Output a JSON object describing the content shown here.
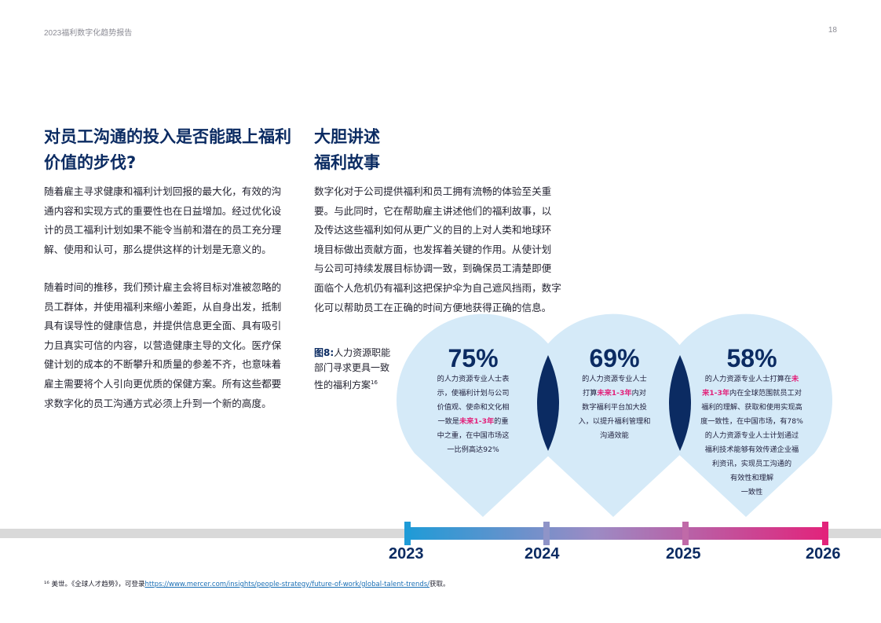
{
  "header": {
    "report_title": "2023福利数字化趋势报告",
    "page_number": "18"
  },
  "left_column": {
    "title_lines": [
      "对员工沟通的投入是否能跟上福利",
      "价值的步伐?"
    ],
    "paragraph1_lines": [
      "随着雇主寻求健康和福利计划回报的最大化，有效的沟",
      "通内容和实现方式的重要性也在日益增加。经过优化设",
      "计的员工福利计划如果不能令当前和潜在的员工充分理",
      "解、使用和认可，那么提供这样的计划是无意义的。"
    ],
    "paragraph2_lines": [
      "随着时间的推移，我们预计雇主会将目标对准被忽略的",
      "员工群体，并使用福利来缩小差距，从自身出发，抵制",
      "具有误导性的健康信息，并提供信息更全面、具有吸引",
      "力且真实可信的内容，以营造健康主导的文化。医疗保",
      "健计划的成本的不断攀升和质量的参差不齐，也意味着",
      "雇主需要将个人引向更优质的保健方案。所有这些都要",
      "求数字化的员工沟通方式必须上升到一个新的高度。"
    ]
  },
  "right_column": {
    "title_lines": [
      "大胆讲述",
      "福利故事"
    ],
    "paragraph_lines": [
      "数字化对于公司提供福利和员工拥有流畅的体验至关重",
      "要。与此同时，它在帮助雇主讲述他们的福利故事，以",
      "及传达这些福利如何从更广义的目的上对人类和地球环",
      "境目标做出贡献方面，也发挥着关键的作用。从使计划",
      "与公司可持续发展目标协调一致，到确保员工清楚即便",
      "面临个人危机仍有福利这把保护伞为自己遮风挡雨，数字",
      "化可以帮助员工在正确的时间方便地获得正确的信息。"
    ]
  },
  "figure": {
    "label": "图8:",
    "caption_lines": [
      "人力资源职能",
      "部门寻求更具一致",
      "性的福利方案"
    ],
    "caption_sup": "16",
    "stats": [
      {
        "percent": "75%",
        "lines": [
          {
            "parts": [
              {
                "t": "的人力资源专业人士表"
              }
            ]
          },
          {
            "parts": [
              {
                "t": "示，使福利计划与公司"
              }
            ]
          },
          {
            "parts": [
              {
                "t": "价值观、使命和文化相"
              }
            ]
          },
          {
            "parts": [
              {
                "t": "一致是"
              },
              {
                "t": "未来1-3年",
                "hl": true
              },
              {
                "t": "的重"
              }
            ]
          },
          {
            "parts": [
              {
                "t": "中之重，在中国市场这"
              }
            ]
          },
          {
            "parts": [
              {
                "t": "一比例高达92%"
              }
            ]
          }
        ]
      },
      {
        "percent": "69%",
        "lines": [
          {
            "parts": [
              {
                "t": "的人力资源专业人士"
              }
            ]
          },
          {
            "parts": [
              {
                "t": "打算"
              },
              {
                "t": "未来1-3年",
                "hl": true
              },
              {
                "t": "内对"
              }
            ]
          },
          {
            "parts": [
              {
                "t": "数字福利平台加大投"
              }
            ]
          },
          {
            "parts": [
              {
                "t": "入，以提升福利管理和"
              }
            ]
          },
          {
            "parts": [
              {
                "t": "沟通效能"
              }
            ]
          }
        ]
      },
      {
        "percent": "58%",
        "lines": [
          {
            "parts": [
              {
                "t": "的人力资源专业人士打算在"
              },
              {
                "t": "未",
                "hl": true
              }
            ]
          },
          {
            "parts": [
              {
                "t": "来1-3年",
                "hl": true
              },
              {
                "t": "内在全球范围就员工对"
              }
            ]
          },
          {
            "parts": [
              {
                "t": "福利的理解、获取和使用实现高"
              }
            ]
          },
          {
            "parts": [
              {
                "t": "度一致性，在中国市场，有78%"
              }
            ]
          },
          {
            "parts": [
              {
                "t": "的人力资源专业人士计划通过"
              }
            ]
          },
          {
            "parts": [
              {
                "t": "福利技术能够有效传递企业福"
              }
            ]
          },
          {
            "parts": [
              {
                "t": "利资讯，实现员工沟通的"
              }
            ]
          },
          {
            "parts": [
              {
                "t": "有效性和理解"
              }
            ]
          },
          {
            "parts": [
              {
                "t": "一致性"
              }
            ]
          }
        ]
      }
    ],
    "years": [
      "2023",
      "2024",
      "2025",
      "2026"
    ],
    "colors": {
      "drop_fill": "#d5eaf8",
      "overlap_fill": "#0b2b62",
      "gradient_start": "#1e9bd7",
      "gradient_end": "#e2237b",
      "timeline_gray": "#d9d9d9"
    }
  },
  "footnote": {
    "prefix": "¹⁶ 美世。《全球人才趋势》，可登录",
    "link": "https://www.mercer.com/insights/people-strategy/future-of-work/global-talent-trends/",
    "suffix": "获取。"
  }
}
